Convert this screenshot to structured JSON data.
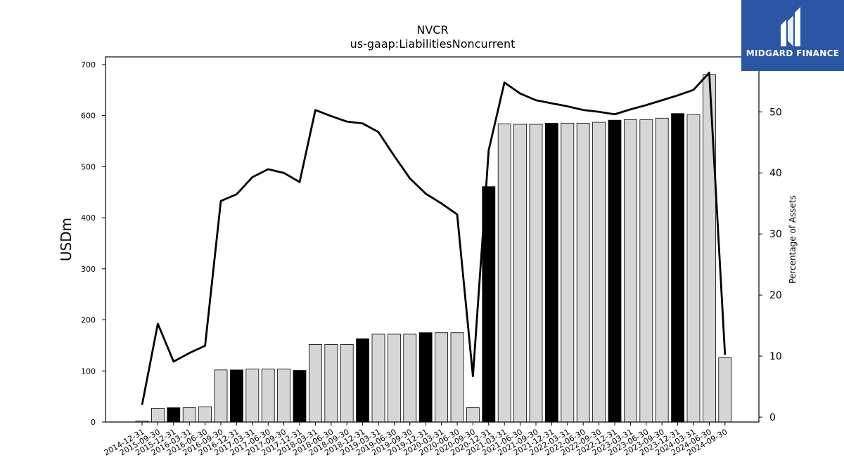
{
  "chart_data": {
    "type": "bar",
    "title": "NVCR",
    "subtitle": "us-gaap:LiabilitiesNoncurrent",
    "ylabel": "USDm",
    "ylabel_right": "Percentage of Assets",
    "ylim": [
      0,
      715
    ],
    "ylim_right": [
      -0.8,
      59
    ],
    "yticks": [
      0,
      100,
      200,
      300,
      400,
      500,
      600,
      700
    ],
    "yticks_right": [
      0,
      10,
      20,
      30,
      40,
      50
    ],
    "grid": false,
    "categories": [
      "2014-12-31",
      "2015-09-30",
      "2015-12-31",
      "2016-03-31",
      "2016-06-30",
      "2016-09-30",
      "2016-12-31",
      "2017-03-31",
      "2017-06-30",
      "2017-09-30",
      "2017-12-31",
      "2018-03-31",
      "2018-06-30",
      "2018-09-30",
      "2018-12-31",
      "2019-03-31",
      "2019-06-30",
      "2019-09-30",
      "2019-12-31",
      "2020-03-31",
      "2020-06-30",
      "2020-09-30",
      "2020-12-31",
      "2021-03-31",
      "2021-06-30",
      "2021-09-30",
      "2021-12-31",
      "2022-03-31",
      "2022-06-30",
      "2022-09-30",
      "2022-12-31",
      "2023-03-31",
      "2023-06-30",
      "2023-09-30",
      "2023-12-31",
      "2024-03-31",
      "2024-06-30",
      "2024-09-30"
    ],
    "series": [
      {
        "values": [
          2,
          27,
          28,
          28,
          30,
          102,
          102,
          104,
          104,
          104,
          101,
          152,
          152,
          152,
          163,
          172,
          172,
          172,
          175,
          175,
          175,
          28,
          461,
          584,
          583,
          583,
          585,
          585,
          585,
          587,
          591,
          592,
          592,
          595,
          604,
          602,
          680,
          126
        ],
        "year_end": [
          false,
          false,
          true,
          false,
          false,
          false,
          true,
          false,
          false,
          false,
          true,
          false,
          false,
          false,
          true,
          false,
          false,
          false,
          true,
          false,
          false,
          false,
          true,
          false,
          false,
          false,
          true,
          false,
          false,
          false,
          true,
          false,
          false,
          false,
          true,
          false,
          false,
          false
        ],
        "colors": {
          "quarter": "#d6d6d6",
          "year_end": "#000000",
          "edge": "#000000"
        }
      },
      {
        "axis": "right",
        "values": [
          2.0,
          15.3,
          9.1,
          10.5,
          11.7,
          35.4,
          36.5,
          39.3,
          40.6,
          40.0,
          38.5,
          50.3,
          49.3,
          48.4,
          48.1,
          46.7,
          42.8,
          39.1,
          36.6,
          35.0,
          33.2,
          6.7,
          43.7,
          54.8,
          53.0,
          51.9,
          51.4,
          50.9,
          50.3,
          50.0,
          49.6,
          50.4,
          51.1,
          51.9,
          52.7,
          53.6,
          56.4,
          10.2
        ],
        "color": "#000000"
      }
    ]
  },
  "logo": {
    "text": "MIDGARD FINANCE",
    "background": "#2b55a5"
  }
}
